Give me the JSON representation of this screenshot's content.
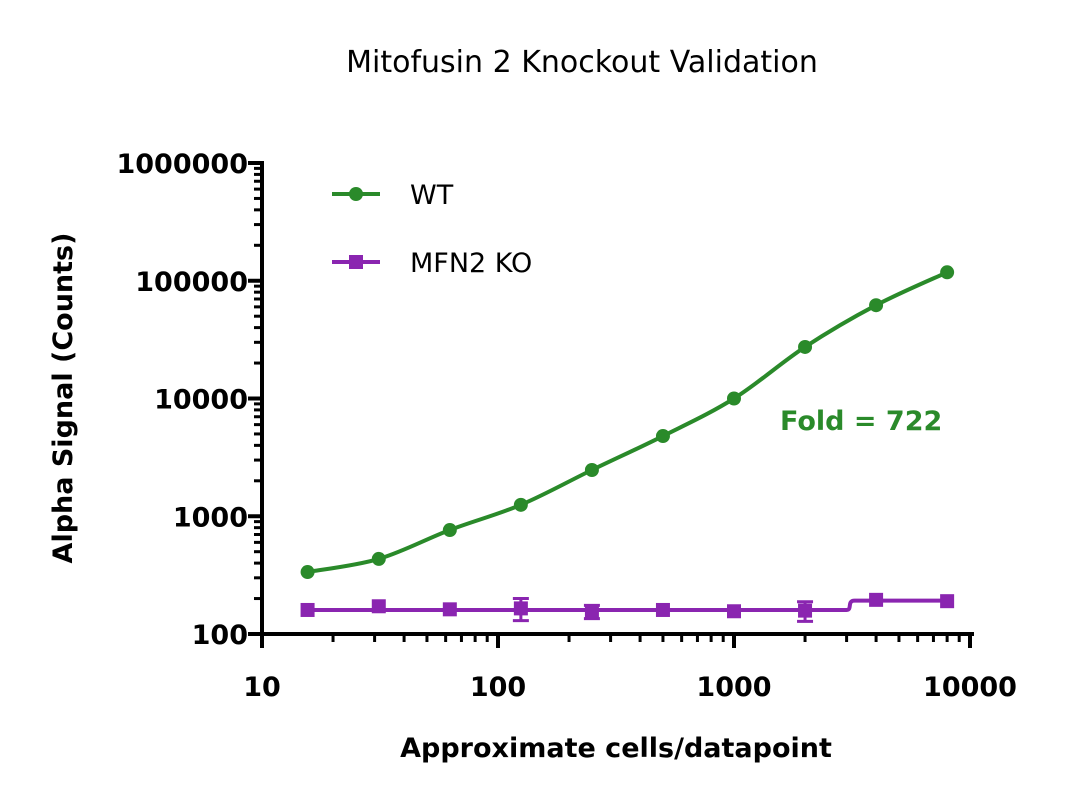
{
  "chart_data": {
    "type": "line",
    "title": "Mitofusin 2 Knockout Validation",
    "xlabel": "Approximate cells/datapoint",
    "ylabel": "Alpha Signal (Counts)",
    "xscale": "log",
    "yscale": "log",
    "xlim": [
      10,
      10000
    ],
    "ylim": [
      100,
      1000000
    ],
    "xticks": [
      "10",
      "100",
      "1000",
      "10000"
    ],
    "yticks": [
      "100",
      "1000",
      "10000",
      "100000",
      "1000000"
    ],
    "grid": false,
    "legend": "top-left",
    "annotation": "Fold = 722",
    "x": [
      15.6,
      31.25,
      62.5,
      125,
      250,
      500,
      1000,
      2000,
      4000,
      8000
    ],
    "series": [
      {
        "name": "WT",
        "color": "#2a8a2a",
        "marker": "circle",
        "values": [
          336,
          434,
          764,
          1250,
          2470,
          4800,
          10000,
          27400,
          62000,
          118000
        ],
        "errors": [
          0,
          0,
          0,
          0,
          0,
          0,
          0,
          0,
          0,
          0
        ]
      },
      {
        "name": "MFN2 KO",
        "color": "#8a25b0",
        "marker": "square",
        "values": [
          160,
          172,
          162,
          165,
          155,
          160,
          156,
          158,
          195,
          190
        ],
        "errors": [
          0,
          0,
          0,
          35,
          20,
          0,
          0,
          30,
          0,
          0
        ]
      }
    ]
  }
}
